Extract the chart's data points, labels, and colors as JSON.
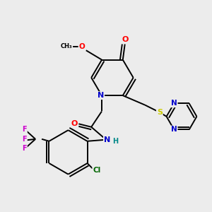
{
  "background_color": "#ececec",
  "atom_colors": {
    "O": "#ff0000",
    "N": "#0000cc",
    "S": "#cccc00",
    "F": "#cc00cc",
    "Cl": "#006600",
    "C": "#000000",
    "H": "#008888"
  }
}
